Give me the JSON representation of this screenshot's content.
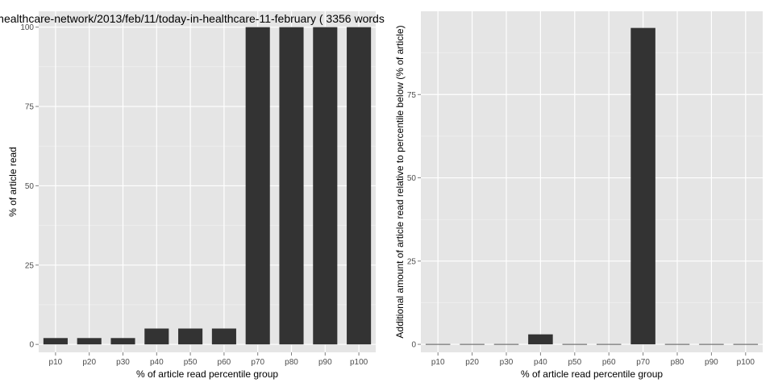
{
  "colors": {
    "panel": "#e5e5e5",
    "bar": "#333333",
    "grid": "#ffffff",
    "tick_text": "#4d4d4d"
  },
  "chart_data": [
    {
      "type": "bar",
      "title": "healthcare-network/2013/feb/11/today-in-healthcare-11-february ( 3356 words",
      "xlabel": "% of article read percentile group",
      "ylabel": "% of article read",
      "categories": [
        "p10",
        "p20",
        "p30",
        "p40",
        "p50",
        "p60",
        "p70",
        "p80",
        "p90",
        "p100"
      ],
      "values": [
        2,
        2,
        2,
        5,
        5,
        5,
        100,
        100,
        100,
        100
      ],
      "ylim": [
        -2.5,
        105
      ],
      "yticks": [
        0,
        25,
        50,
        75,
        100
      ],
      "grid": true
    },
    {
      "type": "bar",
      "title": "",
      "xlabel": "% of article read percentile group",
      "ylabel": "Additional amount of article read relative to percentile below (% of article)",
      "categories": [
        "p10",
        "p20",
        "p30",
        "p40",
        "p50",
        "p60",
        "p70",
        "p80",
        "p90",
        "p100"
      ],
      "values": [
        0,
        0,
        0,
        3,
        0,
        0,
        95,
        0,
        0,
        0
      ],
      "ylim": [
        -2.4,
        100
      ],
      "yticks": [
        0,
        25,
        50,
        75
      ],
      "grid": true
    }
  ]
}
